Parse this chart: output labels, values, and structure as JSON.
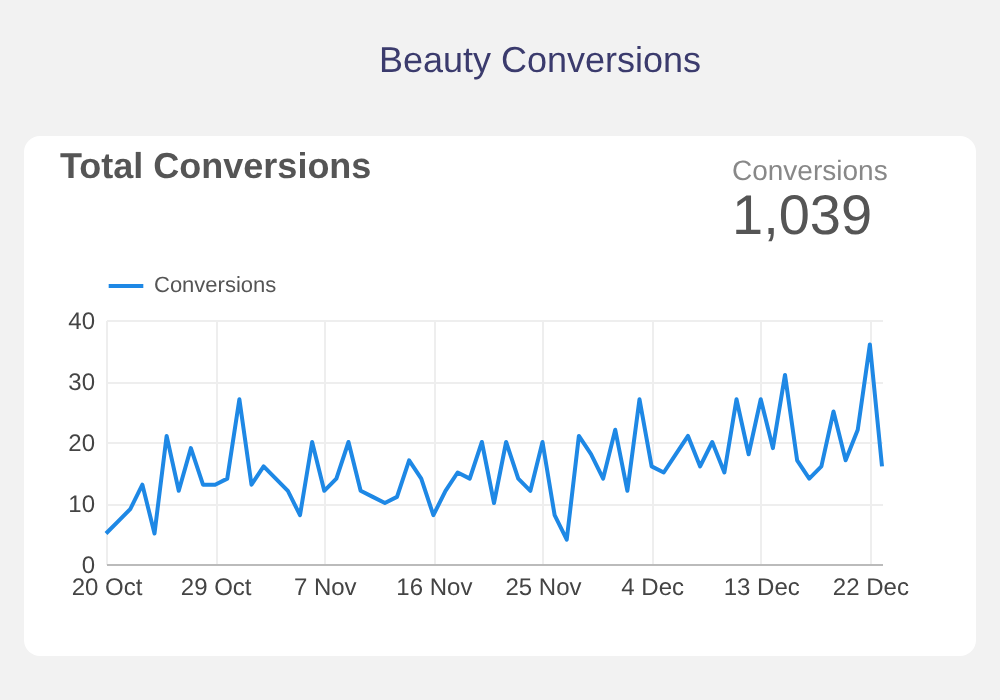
{
  "chart_data": {
    "type": "line",
    "title": "Beauty Conversions",
    "subtitle": "Total Conversions",
    "annotations": [
      "Conversions",
      "1,039"
    ],
    "x": [
      "--10-20",
      "--10-21",
      "--10-22",
      "--10-23",
      "--10-24",
      "--10-25",
      "--10-26",
      "--10-27",
      "--10-28",
      "--10-29",
      "--10-30",
      "--10-31",
      "--11-01",
      "--11-02",
      "--11-03",
      "--11-04",
      "--11-05",
      "--11-06",
      "--11-07",
      "--11-08",
      "--11-09",
      "--11-10",
      "--11-11",
      "--11-12",
      "--11-13",
      "--11-14",
      "--11-15",
      "--11-16",
      "--11-17",
      "--11-18",
      "--11-19",
      "--11-20",
      "--11-21",
      "--11-22",
      "--11-23",
      "--11-24",
      "--11-25",
      "--11-26",
      "--11-27",
      "--11-28",
      "--11-29",
      "--11-30",
      "--12-01",
      "--12-02",
      "--12-03",
      "--12-04",
      "--12-05",
      "--12-06",
      "--12-07",
      "--12-08",
      "--12-09",
      "--12-10",
      "--12-11",
      "--12-12",
      "--12-13",
      "--12-14",
      "--12-15",
      "--12-16",
      "--12-17",
      "--12-18",
      "--12-19",
      "--12-20",
      "--12-21",
      "--12-22",
      "--12-23"
    ],
    "series": [
      {
        "name": "Conversions",
        "color": "#1e88e5",
        "values": [
          5,
          7,
          9,
          13,
          5,
          21,
          12,
          19,
          13,
          13,
          14,
          27,
          13,
          16,
          14,
          12,
          8,
          20,
          12,
          14,
          20,
          12,
          11,
          10,
          11,
          17,
          14,
          8,
          12,
          15,
          14,
          20,
          10,
          20,
          14,
          12,
          20,
          8,
          4,
          21,
          18,
          14,
          22,
          12,
          27,
          16,
          15,
          18,
          21,
          16,
          20,
          15,
          27,
          18,
          27,
          19,
          31,
          17,
          14,
          16,
          25,
          17,
          22,
          36,
          16
        ]
      }
    ],
    "xlim": [
      "--10-20",
      "--12-23"
    ],
    "xticks": [
      {
        "value": "--10-20",
        "label": "20 Oct"
      },
      {
        "value": "--10-29",
        "label": "29 Oct"
      },
      {
        "value": "--11-07",
        "label": "7 Nov"
      },
      {
        "value": "--11-16",
        "label": "16 Nov"
      },
      {
        "value": "--11-25",
        "label": "25 Nov"
      },
      {
        "value": "--12-04",
        "label": "4 Dec"
      },
      {
        "value": "--12-13",
        "label": "13 Dec"
      },
      {
        "value": "--12-22",
        "label": "22 Dec"
      }
    ],
    "ylim": [
      0,
      40
    ],
    "yticks": [
      0,
      10,
      20,
      30,
      40
    ],
    "grid": true,
    "legend": "top left",
    "marker": "none",
    "line_style": "solid"
  }
}
